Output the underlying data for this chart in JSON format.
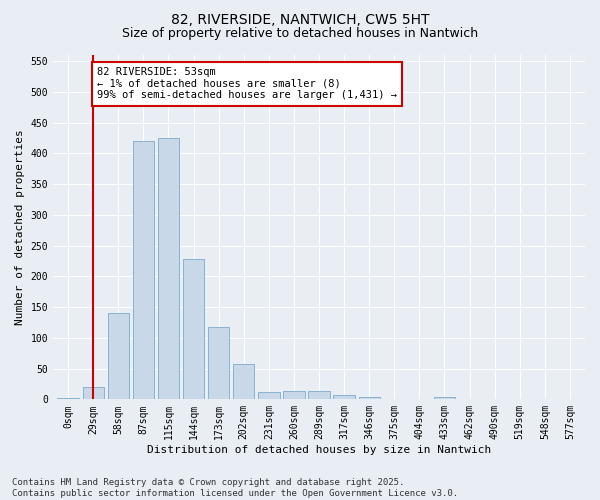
{
  "title": "82, RIVERSIDE, NANTWICH, CW5 5HT",
  "subtitle": "Size of property relative to detached houses in Nantwich",
  "xlabel": "Distribution of detached houses by size in Nantwich",
  "ylabel": "Number of detached properties",
  "bar_labels": [
    "0sqm",
    "29sqm",
    "58sqm",
    "87sqm",
    "115sqm",
    "144sqm",
    "173sqm",
    "202sqm",
    "231sqm",
    "260sqm",
    "289sqm",
    "317sqm",
    "346sqm",
    "375sqm",
    "404sqm",
    "433sqm",
    "462sqm",
    "490sqm",
    "519sqm",
    "548sqm",
    "577sqm"
  ],
  "bar_values": [
    2,
    20,
    140,
    420,
    425,
    228,
    117,
    58,
    12,
    13,
    13,
    7,
    3,
    1,
    0,
    3,
    1,
    0,
    0,
    0,
    1
  ],
  "bar_color": "#c8d8e8",
  "bar_edge_color": "#7aaacc",
  "vline_x": 1.0,
  "vline_color": "#cc0000",
  "annotation_text": "82 RIVERSIDE: 53sqm\n← 1% of detached houses are smaller (8)\n99% of semi-detached houses are larger (1,431) →",
  "annotation_box_color": "#ffffff",
  "annotation_box_edge_color": "#cc0000",
  "ylim": [
    0,
    560
  ],
  "yticks": [
    0,
    50,
    100,
    150,
    200,
    250,
    300,
    350,
    400,
    450,
    500,
    550
  ],
  "bg_color": "#e8eef4",
  "plot_bg_color": "#e8eef4",
  "grid_color": "#ffffff",
  "footer_line1": "Contains HM Land Registry data © Crown copyright and database right 2025.",
  "footer_line2": "Contains public sector information licensed under the Open Government Licence v3.0.",
  "title_fontsize": 10,
  "subtitle_fontsize": 9,
  "axis_label_fontsize": 8,
  "tick_fontsize": 7,
  "annotation_fontsize": 7.5,
  "footer_fontsize": 6.5
}
